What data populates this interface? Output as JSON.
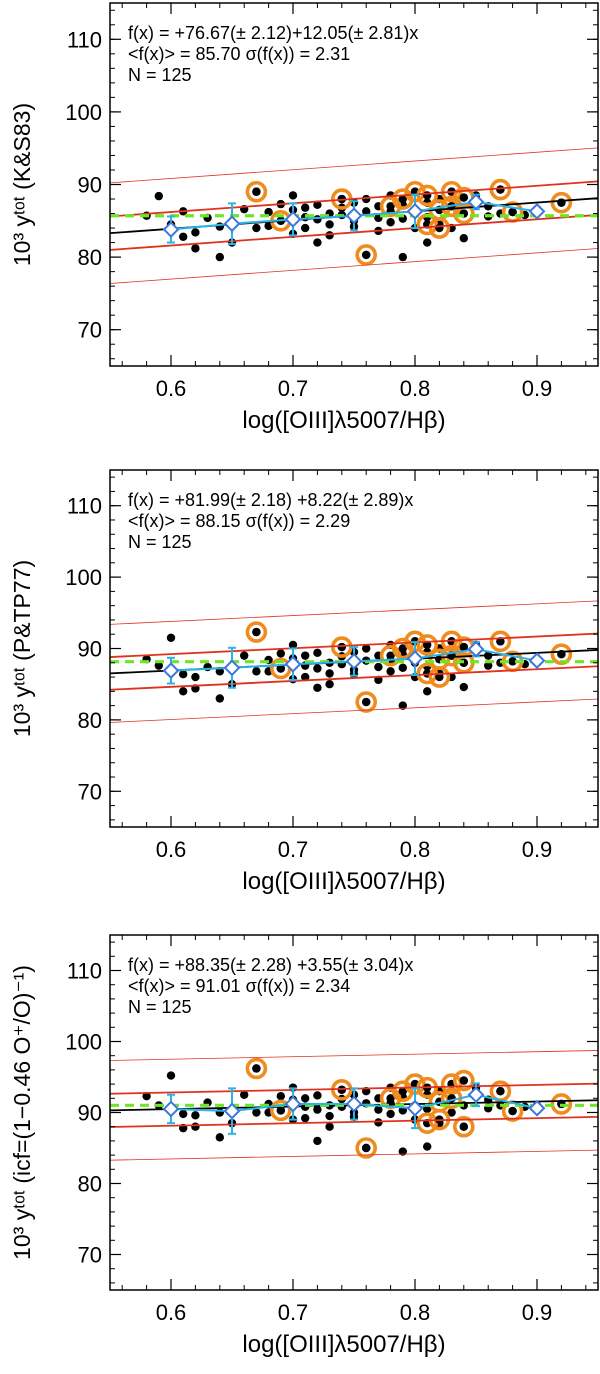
{
  "chart_data": [
    {
      "type": "scatter",
      "xlabel": "log([OIII]λ5007/Hβ)",
      "ylabel": "10³ yᵗᵒᵗ (K&S83)",
      "xlim": [
        0.55,
        0.95
      ],
      "ylim": [
        65,
        115
      ],
      "xticks": [
        "0.6",
        "0.7",
        "0.8",
        "0.9"
      ],
      "yticks": [
        "70",
        "80",
        "90",
        "100",
        "110"
      ],
      "annotations": [
        "f(x) = +76.67(± 2.12)+12.05(± 2.81)x",
        "<f(x)> =  85.70     σ(f(x)) =   2.31",
        "N = 125"
      ],
      "fit": {
        "intercept": 76.67,
        "slope": 12.05
      },
      "mean": 85.7,
      "sigma": 2.31,
      "n": 125,
      "bins": {
        "x": [
          0.6,
          0.65,
          0.7,
          0.75,
          0.8,
          0.85,
          0.9
        ],
        "y": [
          83.8,
          84.6,
          85.2,
          85.7,
          86.3,
          87.6,
          86.3
        ],
        "err": [
          1.8,
          2.8,
          2.2,
          2.0,
          2.3,
          1.0,
          0.5
        ]
      },
      "points": [
        [
          0.58,
          85.7
        ],
        [
          0.59,
          88.4
        ],
        [
          0.6,
          84.5
        ],
        [
          0.61,
          82.8
        ],
        [
          0.61,
          86.3
        ],
        [
          0.62,
          81.2
        ],
        [
          0.62,
          83.4
        ],
        [
          0.63,
          85.4
        ],
        [
          0.64,
          80.0
        ],
        [
          0.64,
          84.2
        ],
        [
          0.65,
          82.0
        ],
        [
          0.66,
          86.6
        ],
        [
          0.67,
          84.0
        ],
        [
          0.67,
          89.0
        ],
        [
          0.68,
          86.2
        ],
        [
          0.68,
          84.3
        ],
        [
          0.69,
          87.3
        ],
        [
          0.69,
          85.0
        ],
        [
          0.7,
          86.5
        ],
        [
          0.7,
          83.2
        ],
        [
          0.7,
          88.5
        ],
        [
          0.71,
          85.5
        ],
        [
          0.71,
          84.0
        ],
        [
          0.71,
          86.8
        ],
        [
          0.72,
          85.2
        ],
        [
          0.72,
          82.0
        ],
        [
          0.72,
          87.2
        ],
        [
          0.73,
          86.0
        ],
        [
          0.73,
          84.5
        ],
        [
          0.73,
          83.0
        ],
        [
          0.74,
          88.0
        ],
        [
          0.74,
          85.8
        ],
        [
          0.74,
          86.8
        ],
        [
          0.75,
          85.0
        ],
        [
          0.75,
          87.5
        ],
        [
          0.75,
          84.2
        ],
        [
          0.76,
          86.3
        ],
        [
          0.76,
          80.3
        ],
        [
          0.76,
          88.0
        ],
        [
          0.77,
          85.4
        ],
        [
          0.77,
          83.6
        ],
        [
          0.77,
          87.0
        ],
        [
          0.78,
          86.3
        ],
        [
          0.78,
          84.8
        ],
        [
          0.78,
          88.5
        ],
        [
          0.79,
          87.2
        ],
        [
          0.79,
          85.3
        ],
        [
          0.79,
          80.0
        ],
        [
          0.8,
          86.0
        ],
        [
          0.8,
          89.0
        ],
        [
          0.8,
          84.0
        ],
        [
          0.81,
          87.5
        ],
        [
          0.81,
          85.5
        ],
        [
          0.81,
          82.0
        ],
        [
          0.82,
          88.0
        ],
        [
          0.82,
          86.5
        ],
        [
          0.82,
          84.5
        ],
        [
          0.83,
          89.0
        ],
        [
          0.83,
          87.0
        ],
        [
          0.83,
          84.0
        ],
        [
          0.84,
          88.2
        ],
        [
          0.84,
          86.0
        ],
        [
          0.84,
          82.6
        ],
        [
          0.85,
          87.8
        ],
        [
          0.85,
          88.5
        ],
        [
          0.86,
          87.0
        ],
        [
          0.86,
          85.6
        ],
        [
          0.87,
          89.3
        ],
        [
          0.87,
          86.0
        ],
        [
          0.88,
          86.2
        ],
        [
          0.89,
          85.8
        ],
        [
          0.9,
          86.2
        ],
        [
          0.92,
          87.5
        ]
      ],
      "circled": [
        [
          0.67,
          89.0
        ],
        [
          0.69,
          85.0
        ],
        [
          0.74,
          88.0
        ],
        [
          0.76,
          80.3
        ],
        [
          0.78,
          87.0
        ],
        [
          0.79,
          88.0
        ],
        [
          0.8,
          89.0
        ],
        [
          0.81,
          84.5
        ],
        [
          0.81,
          88.5
        ],
        [
          0.82,
          86.5
        ],
        [
          0.82,
          84.0
        ],
        [
          0.83,
          89.0
        ],
        [
          0.83,
          87.0
        ],
        [
          0.84,
          88.2
        ],
        [
          0.84,
          86.0
        ],
        [
          0.87,
          89.3
        ],
        [
          0.88,
          86.2
        ],
        [
          0.92,
          87.5
        ]
      ]
    },
    {
      "type": "scatter",
      "xlabel": "log([OIII]λ5007/Hβ)",
      "ylabel": "10³ yᵗᵒᵗ (P&TP77)",
      "xlim": [
        0.55,
        0.95
      ],
      "ylim": [
        65,
        115
      ],
      "xticks": [
        "0.6",
        "0.7",
        "0.8",
        "0.9"
      ],
      "yticks": [
        "70",
        "80",
        "90",
        "100",
        "110"
      ],
      "annotations": [
        "f(x) = +81.99(± 2.18) +8.22(± 2.89)x",
        "<f(x)> =  88.15     σ(f(x)) =   2.29",
        "N = 125"
      ],
      "fit": {
        "intercept": 81.99,
        "slope": 8.22
      },
      "mean": 88.15,
      "sigma": 2.29,
      "n": 125,
      "bins": {
        "x": [
          0.6,
          0.65,
          0.7,
          0.75,
          0.8,
          0.85,
          0.9
        ],
        "y": [
          86.9,
          87.3,
          87.8,
          88.2,
          88.6,
          89.9,
          88.3
        ],
        "err": [
          1.8,
          2.8,
          2.2,
          2.0,
          2.3,
          1.0,
          0.5
        ]
      },
      "points": [
        [
          0.58,
          88.5
        ],
        [
          0.59,
          87.6
        ],
        [
          0.6,
          91.5
        ],
        [
          0.61,
          84.0
        ],
        [
          0.61,
          86.4
        ],
        [
          0.62,
          84.4
        ],
        [
          0.62,
          86.0
        ],
        [
          0.63,
          87.4
        ],
        [
          0.64,
          83.0
        ],
        [
          0.64,
          86.8
        ],
        [
          0.65,
          85.0
        ],
        [
          0.66,
          89.0
        ],
        [
          0.67,
          86.8
        ],
        [
          0.67,
          92.3
        ],
        [
          0.68,
          88.4
        ],
        [
          0.68,
          86.8
        ],
        [
          0.69,
          89.3
        ],
        [
          0.69,
          87.2
        ],
        [
          0.7,
          88.6
        ],
        [
          0.7,
          85.7
        ],
        [
          0.7,
          90.5
        ],
        [
          0.71,
          87.6
        ],
        [
          0.71,
          86.0
        ],
        [
          0.71,
          89.0
        ],
        [
          0.72,
          87.2
        ],
        [
          0.72,
          84.5
        ],
        [
          0.72,
          89.4
        ],
        [
          0.73,
          88.0
        ],
        [
          0.73,
          86.5
        ],
        [
          0.73,
          85.0
        ],
        [
          0.74,
          90.2
        ],
        [
          0.74,
          87.8
        ],
        [
          0.74,
          88.9
        ],
        [
          0.75,
          87.0
        ],
        [
          0.75,
          89.5
        ],
        [
          0.75,
          86.4
        ],
        [
          0.76,
          88.3
        ],
        [
          0.76,
          82.5
        ],
        [
          0.76,
          90.0
        ],
        [
          0.77,
          87.4
        ],
        [
          0.77,
          85.6
        ],
        [
          0.77,
          89.0
        ],
        [
          0.78,
          88.3
        ],
        [
          0.78,
          86.8
        ],
        [
          0.78,
          90.5
        ],
        [
          0.79,
          89.2
        ],
        [
          0.79,
          87.3
        ],
        [
          0.79,
          82.0
        ],
        [
          0.8,
          88.0
        ],
        [
          0.8,
          91.0
        ],
        [
          0.8,
          86.0
        ],
        [
          0.81,
          89.5
        ],
        [
          0.81,
          87.5
        ],
        [
          0.81,
          84.0
        ],
        [
          0.82,
          90.0
        ],
        [
          0.82,
          88.5
        ],
        [
          0.82,
          86.5
        ],
        [
          0.83,
          91.0
        ],
        [
          0.83,
          89.0
        ],
        [
          0.83,
          86.0
        ],
        [
          0.84,
          90.2
        ],
        [
          0.84,
          88.0
        ],
        [
          0.84,
          84.6
        ],
        [
          0.85,
          89.8
        ],
        [
          0.85,
          90.5
        ],
        [
          0.86,
          89.0
        ],
        [
          0.86,
          87.6
        ],
        [
          0.87,
          91.0
        ],
        [
          0.87,
          88.0
        ],
        [
          0.88,
          88.2
        ],
        [
          0.89,
          87.8
        ],
        [
          0.9,
          88.2
        ],
        [
          0.92,
          89.2
        ]
      ],
      "circled": [
        [
          0.67,
          92.3
        ],
        [
          0.69,
          87.2
        ],
        [
          0.74,
          90.2
        ],
        [
          0.76,
          82.5
        ],
        [
          0.78,
          89.0
        ],
        [
          0.79,
          90.0
        ],
        [
          0.8,
          91.0
        ],
        [
          0.81,
          86.5
        ],
        [
          0.81,
          90.5
        ],
        [
          0.82,
          88.5
        ],
        [
          0.82,
          86.0
        ],
        [
          0.83,
          91.0
        ],
        [
          0.83,
          89.0
        ],
        [
          0.84,
          90.2
        ],
        [
          0.84,
          88.0
        ],
        [
          0.87,
          91.0
        ],
        [
          0.88,
          88.2
        ],
        [
          0.92,
          89.2
        ]
      ]
    },
    {
      "type": "scatter",
      "xlabel": "log([OIII]λ5007/Hβ)",
      "ylabel": "10³ yᵗᵒᵗ (icf=(1−0.46 O⁺/O)⁻¹)",
      "xlim": [
        0.55,
        0.95
      ],
      "ylim": [
        65,
        115
      ],
      "xticks": [
        "0.6",
        "0.7",
        "0.8",
        "0.9"
      ],
      "yticks": [
        "70",
        "80",
        "90",
        "100",
        "110"
      ],
      "annotations": [
        "f(x) = +88.35(± 2.28) +3.55(± 3.04)x",
        "<f(x)> =  91.01     σ(f(x)) =   2.34",
        "N = 125"
      ],
      "fit": {
        "intercept": 88.35,
        "slope": 3.55
      },
      "mean": 91.01,
      "sigma": 2.34,
      "n": 125,
      "bins": {
        "x": [
          0.6,
          0.65,
          0.7,
          0.75,
          0.8,
          0.85,
          0.9
        ],
        "y": [
          90.5,
          90.2,
          91.2,
          91.2,
          90.6,
          92.5,
          90.6
        ],
        "err": [
          2.0,
          3.2,
          2.2,
          2.2,
          2.8,
          1.6,
          0.5
        ]
      },
      "points": [
        [
          0.58,
          92.3
        ],
        [
          0.59,
          91.0
        ],
        [
          0.6,
          95.2
        ],
        [
          0.61,
          87.8
        ],
        [
          0.61,
          89.8
        ],
        [
          0.62,
          88.0
        ],
        [
          0.62,
          89.6
        ],
        [
          0.63,
          91.4
        ],
        [
          0.64,
          86.5
        ],
        [
          0.64,
          90.0
        ],
        [
          0.65,
          88.5
        ],
        [
          0.66,
          92.5
        ],
        [
          0.67,
          90.0
        ],
        [
          0.67,
          96.2
        ],
        [
          0.68,
          91.2
        ],
        [
          0.68,
          90.0
        ],
        [
          0.69,
          92.3
        ],
        [
          0.69,
          90.3
        ],
        [
          0.7,
          91.8
        ],
        [
          0.7,
          89.0
        ],
        [
          0.7,
          93.5
        ],
        [
          0.71,
          90.8
        ],
        [
          0.71,
          89.2
        ],
        [
          0.71,
          92.0
        ],
        [
          0.72,
          90.4
        ],
        [
          0.72,
          86.0
        ],
        [
          0.72,
          92.4
        ],
        [
          0.73,
          91.0
        ],
        [
          0.73,
          89.5
        ],
        [
          0.73,
          88.0
        ],
        [
          0.74,
          93.2
        ],
        [
          0.74,
          90.8
        ],
        [
          0.74,
          91.9
        ],
        [
          0.75,
          90.0
        ],
        [
          0.75,
          92.5
        ],
        [
          0.75,
          89.4
        ],
        [
          0.76,
          91.3
        ],
        [
          0.76,
          85.0
        ],
        [
          0.76,
          93.0
        ],
        [
          0.77,
          90.4
        ],
        [
          0.77,
          88.6
        ],
        [
          0.77,
          92.0
        ],
        [
          0.78,
          91.3
        ],
        [
          0.78,
          89.8
        ],
        [
          0.78,
          93.5
        ],
        [
          0.79,
          92.2
        ],
        [
          0.79,
          90.3
        ],
        [
          0.79,
          84.5
        ],
        [
          0.8,
          91.0
        ],
        [
          0.8,
          94.0
        ],
        [
          0.8,
          89.0
        ],
        [
          0.81,
          92.5
        ],
        [
          0.81,
          90.5
        ],
        [
          0.81,
          85.2
        ],
        [
          0.82,
          93.0
        ],
        [
          0.82,
          91.5
        ],
        [
          0.82,
          88.5
        ],
        [
          0.83,
          94.0
        ],
        [
          0.83,
          92.0
        ],
        [
          0.83,
          90.0
        ],
        [
          0.84,
          94.5
        ],
        [
          0.84,
          91.0
        ],
        [
          0.84,
          88.0
        ],
        [
          0.85,
          93.0
        ],
        [
          0.85,
          93.5
        ],
        [
          0.86,
          91.8
        ],
        [
          0.86,
          90.6
        ],
        [
          0.87,
          93.0
        ],
        [
          0.87,
          91.0
        ],
        [
          0.88,
          90.2
        ],
        [
          0.89,
          90.8
        ],
        [
          0.9,
          91.0
        ],
        [
          0.92,
          91.2
        ]
      ],
      "circled": [
        [
          0.67,
          96.2
        ],
        [
          0.69,
          90.3
        ],
        [
          0.74,
          93.2
        ],
        [
          0.76,
          85.0
        ],
        [
          0.78,
          92.0
        ],
        [
          0.79,
          93.0
        ],
        [
          0.8,
          94.0
        ],
        [
          0.81,
          88.5
        ],
        [
          0.81,
          93.5
        ],
        [
          0.82,
          91.5
        ],
        [
          0.82,
          89.0
        ],
        [
          0.83,
          94.0
        ],
        [
          0.83,
          92.0
        ],
        [
          0.84,
          94.5
        ],
        [
          0.84,
          88.0
        ],
        [
          0.87,
          93.0
        ],
        [
          0.88,
          90.2
        ],
        [
          0.92,
          91.2
        ]
      ]
    }
  ],
  "colors": {
    "axis": "#000000",
    "points": "#000000",
    "circle": "#f08c1e",
    "fit": "#000000",
    "band": "#e0321e",
    "mean": "#6ee628",
    "bins": "#28b4e6",
    "diamond": "#3c78dc"
  }
}
